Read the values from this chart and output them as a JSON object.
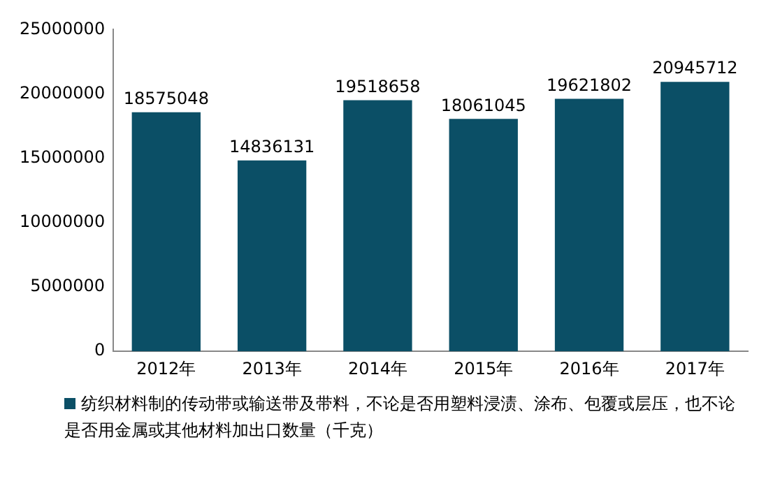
{
  "chart_data": {
    "type": "bar",
    "categories": [
      "2012年",
      "2013年",
      "2014年",
      "2015年",
      "2016年",
      "2017年"
    ],
    "series": [
      {
        "name": "纺织材料制的传动带或输送带及带料，不论是否用塑料浸渍、涂布、包覆或层压，也不论是否用金属或其他材料加出口数量（千克）",
        "color": "#0b4f66",
        "values": [
          18575048,
          14836131,
          19518658,
          18061045,
          19621802,
          20945712
        ]
      }
    ],
    "ylim": [
      0,
      25000000
    ],
    "yticks": [
      0,
      5000000,
      10000000,
      15000000,
      20000000,
      25000000
    ],
    "grid": false,
    "legend": "bottom",
    "data_labels": true
  }
}
